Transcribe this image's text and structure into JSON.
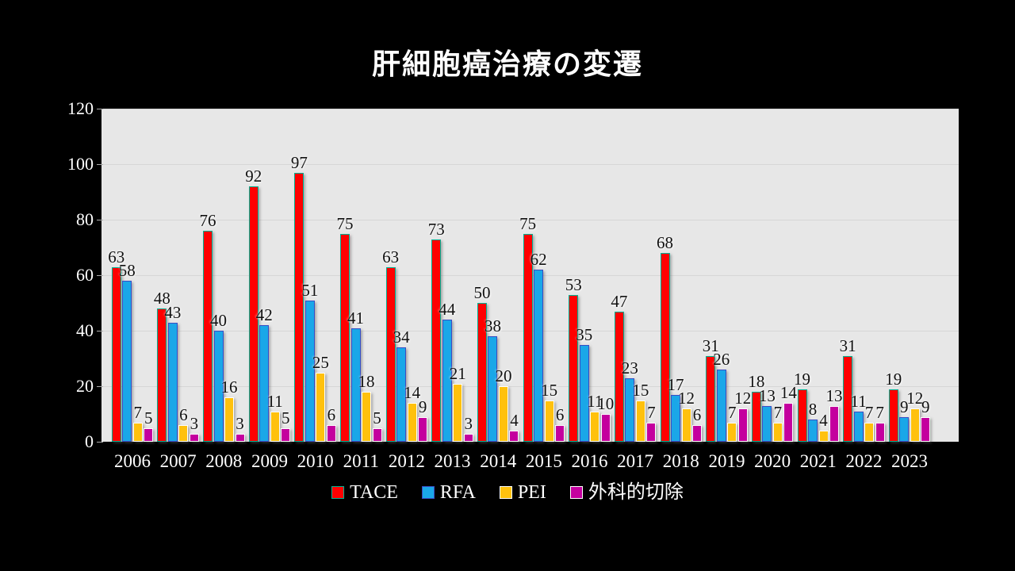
{
  "title": "肝細胞癌治療の変遷",
  "chart_data": {
    "type": "bar",
    "title": "肝細胞癌治療の変遷",
    "categories": [
      "2006",
      "2007",
      "2008",
      "2009",
      "2010",
      "2011",
      "2012",
      "2013",
      "2014",
      "2015",
      "2016",
      "2017",
      "2018",
      "2019",
      "2020",
      "2021",
      "2022",
      "2023"
    ],
    "series": [
      {
        "name": "TACE",
        "color": "#ff0000",
        "border_color": "#00b293",
        "values": [
          63,
          48,
          76,
          92,
          97,
          75,
          63,
          73,
          50,
          75,
          53,
          47,
          68,
          31,
          18,
          19,
          31,
          19
        ]
      },
      {
        "name": "RFA",
        "color": "#1aa7e8",
        "border_color": "#3a4cc4",
        "values": [
          58,
          43,
          40,
          42,
          51,
          41,
          34,
          44,
          38,
          62,
          35,
          23,
          17,
          26,
          13,
          8,
          11,
          9
        ]
      },
      {
        "name": "PEI",
        "color": "#ffc10d",
        "border_color": "#ffffff",
        "values": [
          7,
          6,
          16,
          11,
          25,
          18,
          14,
          21,
          20,
          15,
          11,
          15,
          12,
          7,
          7,
          4,
          7,
          12
        ]
      },
      {
        "name": "外科的切除",
        "color": "#c4009e",
        "border_color": "#ffffff",
        "values": [
          5,
          3,
          3,
          5,
          6,
          5,
          9,
          3,
          4,
          6,
          10,
          7,
          6,
          12,
          14,
          13,
          7,
          9
        ]
      }
    ],
    "ylim": [
      0,
      120
    ],
    "yticks": [
      0,
      20,
      40,
      60,
      80,
      100,
      120
    ],
    "xlabel": "",
    "ylabel": "",
    "grid": true,
    "data_labels": true,
    "legend_position": "bottom",
    "plot_background": "#e7e7e7",
    "page_background": "#000000",
    "axis_text_color": "#ffffff",
    "data_label_color": "#111111"
  }
}
